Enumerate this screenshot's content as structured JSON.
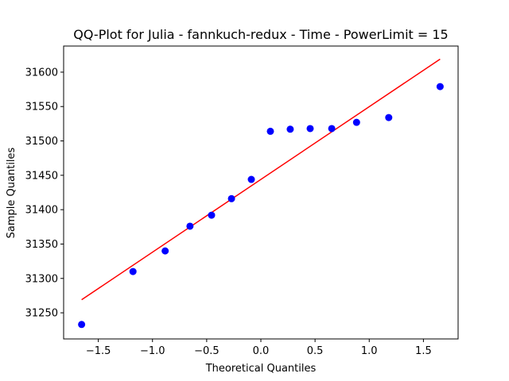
{
  "chart_data": {
    "type": "scatter",
    "title": "QQ-Plot for Julia - fannkuch-redux - Time - PowerLimit = 15",
    "xlabel": "Theoretical Quantiles",
    "ylabel": "Sample Quantiles",
    "xlim": [
      -1.82,
      1.82
    ],
    "ylim": [
      31212,
      31638
    ],
    "x_ticks": [
      -1.5,
      -1.0,
      -0.5,
      0.0,
      0.5,
      1.0,
      1.5
    ],
    "x_tick_labels": [
      "−1.5",
      "−1.0",
      "−0.5",
      "0.0",
      "0.5",
      "1.0",
      "1.5"
    ],
    "y_ticks": [
      31250,
      31300,
      31350,
      31400,
      31450,
      31500,
      31550,
      31600
    ],
    "y_tick_labels": [
      "31250",
      "31300",
      "31350",
      "31400",
      "31450",
      "31500",
      "31550",
      "31600"
    ],
    "grid": false,
    "series": [
      {
        "kind": "points",
        "color": "#0000ff",
        "x": [
          -1.654,
          -1.18,
          -0.883,
          -0.654,
          -0.455,
          -0.271,
          -0.088,
          0.088,
          0.271,
          0.455,
          0.654,
          0.883,
          1.18,
          1.654
        ],
        "y": [
          31233,
          31310,
          31340,
          31376,
          31392,
          31416,
          31444,
          31514,
          31517,
          31518,
          31518,
          31527,
          31534,
          31579
        ]
      },
      {
        "kind": "line",
        "color": "#ff0000",
        "x": [
          -1.654,
          1.654
        ],
        "y": [
          31269,
          31619
        ]
      }
    ]
  }
}
